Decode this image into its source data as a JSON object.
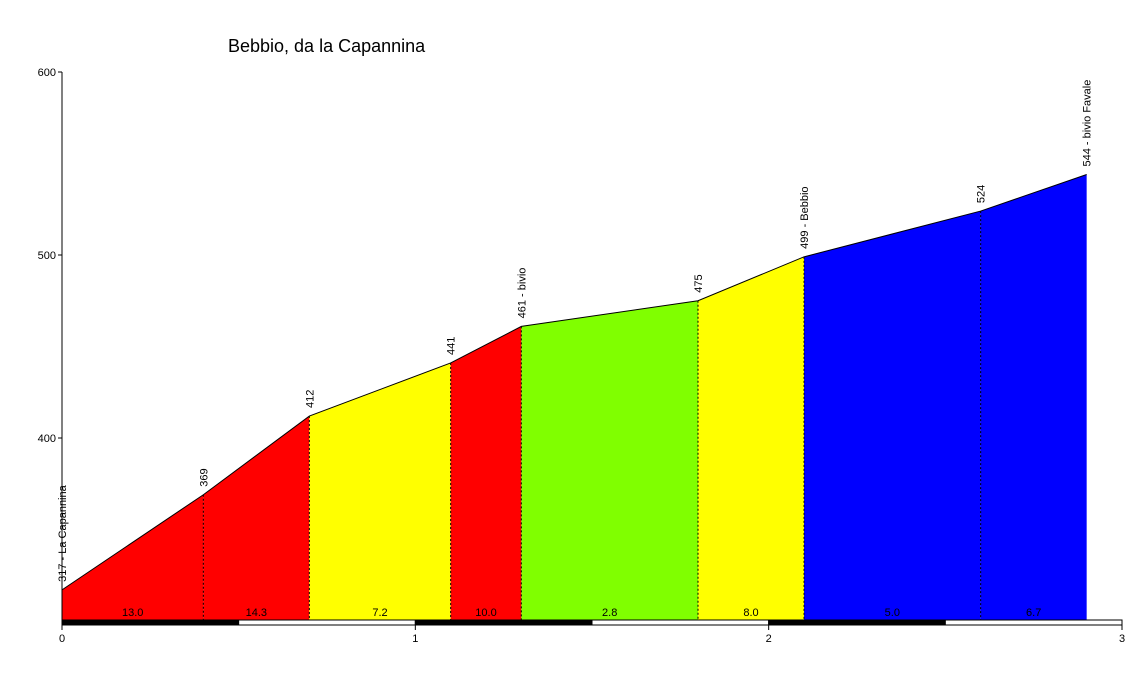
{
  "chart_data": {
    "type": "area",
    "title": "Bebbio, da la Capannina",
    "xlabel": "",
    "ylabel": "",
    "xlim": [
      0,
      3
    ],
    "ylim": [
      300,
      600
    ],
    "x_ticks": [
      "0",
      "1",
      "2",
      "3"
    ],
    "y_ticks": [
      "400",
      "500",
      "600"
    ],
    "points": [
      {
        "x": 0.0,
        "y": 317,
        "label": "317 - La Capannina"
      },
      {
        "x": 0.4,
        "y": 369,
        "label": "369"
      },
      {
        "x": 0.7,
        "y": 412,
        "label": "412"
      },
      {
        "x": 1.1,
        "y": 441,
        "label": "441"
      },
      {
        "x": 1.3,
        "y": 461,
        "label": "461 - bivio"
      },
      {
        "x": 1.8,
        "y": 475,
        "label": "475"
      },
      {
        "x": 2.1,
        "y": 499,
        "label": "499 - Bebbio"
      },
      {
        "x": 2.6,
        "y": 524,
        "label": "524"
      },
      {
        "x": 2.9,
        "y": 544,
        "label": "544 - bivio Favale"
      }
    ],
    "segments": [
      {
        "gradient": "13.0",
        "color": "#ff0000"
      },
      {
        "gradient": "14.3",
        "color": "#ff0000"
      },
      {
        "gradient": "7.2",
        "color": "#ffff00"
      },
      {
        "gradient": "10.0",
        "color": "#ff0000"
      },
      {
        "gradient": "2.8",
        "color": "#80ff00"
      },
      {
        "gradient": "8.0",
        "color": "#ffff00"
      },
      {
        "gradient": "5.0",
        "color": "#0000ff"
      },
      {
        "gradient": "6.7",
        "color": "#0000ff"
      }
    ]
  }
}
